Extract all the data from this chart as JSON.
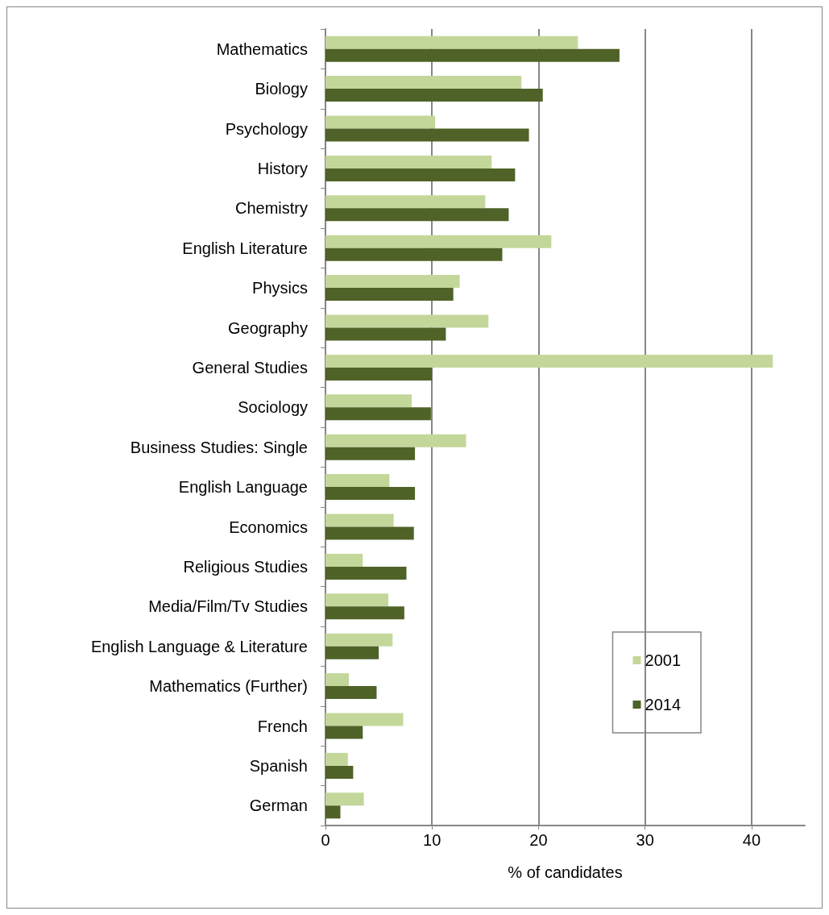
{
  "chart_data": {
    "type": "bar",
    "orientation": "horizontal",
    "xlabel": "% of candidates",
    "categories": [
      "Mathematics",
      "Biology",
      "Psychology",
      "History",
      "Chemistry",
      "English Literature",
      "Physics",
      "Geography",
      "General Studies",
      "Sociology",
      "Business Studies: Single",
      "English Language",
      "Economics",
      "Religious Studies",
      "Media/Film/Tv Studies",
      "English Language & Literature",
      "Mathematics (Further)",
      "French",
      "Spanish",
      "German"
    ],
    "series": [
      {
        "name": "2001",
        "color": "#c4d79b",
        "values": [
          23.7,
          18.4,
          10.3,
          15.6,
          15.0,
          21.2,
          12.6,
          15.3,
          42.0,
          8.1,
          13.2,
          6.0,
          6.4,
          3.5,
          5.9,
          6.3,
          2.2,
          7.3,
          2.1,
          3.6
        ]
      },
      {
        "name": "2014",
        "color": "#4f6228",
        "values": [
          27.6,
          20.4,
          19.1,
          17.8,
          17.2,
          16.6,
          12.0,
          11.3,
          10.0,
          9.9,
          8.4,
          8.4,
          8.3,
          7.6,
          7.4,
          5.0,
          4.8,
          3.5,
          2.6,
          1.4
        ]
      }
    ],
    "xlim": [
      0,
      45
    ],
    "xticks": [
      0,
      10,
      20,
      30,
      40
    ],
    "grid": "x",
    "legend": "right"
  }
}
